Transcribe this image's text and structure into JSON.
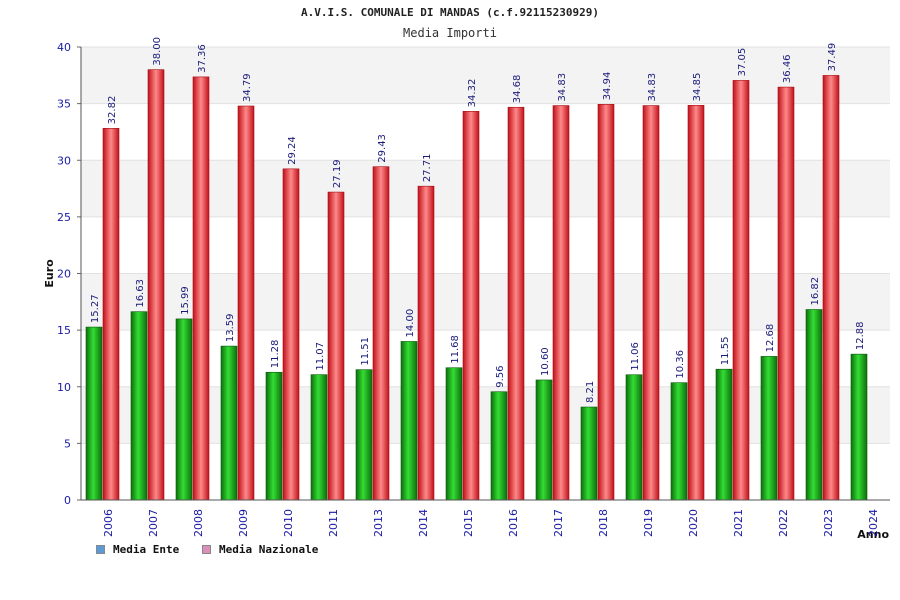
{
  "chart_data": {
    "type": "bar",
    "title": "A.V.I.S. COMUNALE DI MANDAS (c.f.92115230929)",
    "subtitle": "Media Importi",
    "xlabel": "Anno",
    "ylabel": "Euro",
    "ylim": [
      0,
      40
    ],
    "yticks": [
      "0",
      "5",
      "10",
      "15",
      "20",
      "25",
      "30",
      "35",
      "40"
    ],
    "grid": true,
    "legend_position": "bottom-left",
    "categories": [
      "2006",
      "2007",
      "2008",
      "2009",
      "2010",
      "2011",
      "2013",
      "2014",
      "2015",
      "2016",
      "2017",
      "2018",
      "2019",
      "2020",
      "2021",
      "2022",
      "2023",
      "2024"
    ],
    "series": [
      {
        "name": "Media Ente",
        "color": "#1aa31a",
        "legend_color": "#5b9bd5",
        "values": [
          15.27,
          16.63,
          15.99,
          13.59,
          11.28,
          11.07,
          11.51,
          14.0,
          11.68,
          9.56,
          10.6,
          8.21,
          11.06,
          10.36,
          11.55,
          12.68,
          16.82,
          12.88
        ],
        "labels": [
          "15.27",
          "16.63",
          "15.99",
          "13.59",
          "11.28",
          "11.07",
          "11.51",
          "14.00",
          "11.68",
          "9.56",
          "10.60",
          "8.21",
          "11.06",
          "10.36",
          "11.55",
          "12.68",
          "16.82",
          "12.88"
        ]
      },
      {
        "name": "Media Nazionale",
        "color": "#e8242c",
        "legend_color": "#d98fb7",
        "values": [
          32.82,
          38.0,
          37.36,
          34.79,
          29.24,
          27.19,
          29.43,
          27.71,
          34.32,
          34.68,
          34.83,
          34.94,
          34.83,
          34.85,
          37.05,
          36.46,
          37.49,
          null
        ],
        "labels": [
          "32.82",
          "38.00",
          "37.36",
          "34.79",
          "29.24",
          "27.19",
          "29.43",
          "27.71",
          "34.32",
          "34.68",
          "34.83",
          "34.94",
          "34.83",
          "34.85",
          "37.05",
          "36.46",
          "37.49",
          null
        ]
      }
    ]
  }
}
